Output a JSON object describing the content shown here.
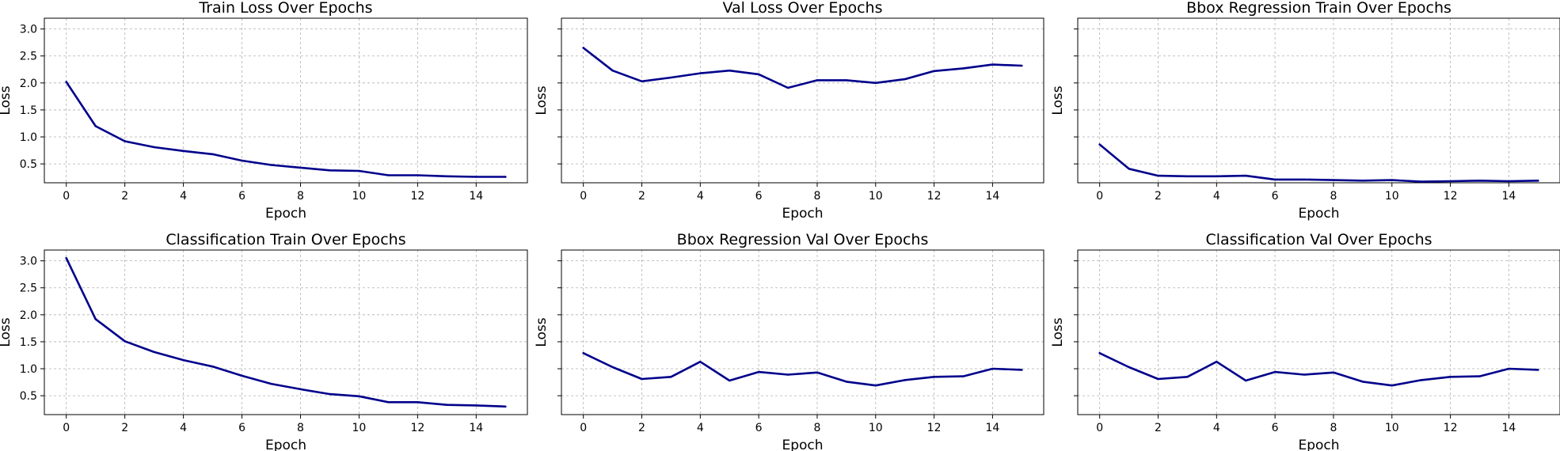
{
  "chart_data": [
    {
      "type": "line",
      "title": "Train Loss Over Epochs",
      "xlabel": "Epoch",
      "ylabel": "Loss",
      "xlim": [
        -0.75,
        15.75
      ],
      "ylim": [
        0.15,
        3.2
      ],
      "xticks": [
        "0",
        "2",
        "4",
        "6",
        "8",
        "10",
        "12",
        "14"
      ],
      "yticks": [
        "0.5",
        "1.0",
        "1.5",
        "2.0",
        "2.5",
        "3.0"
      ],
      "show_ytick_labels": true,
      "grid": true,
      "color": "#00008b",
      "x": [
        0,
        1,
        2,
        3,
        4,
        5,
        6,
        7,
        8,
        9,
        10,
        11,
        12,
        13,
        14,
        15
      ],
      "y": [
        2.02,
        1.2,
        0.92,
        0.81,
        0.74,
        0.68,
        0.56,
        0.48,
        0.43,
        0.38,
        0.37,
        0.29,
        0.29,
        0.27,
        0.26,
        0.26
      ]
    },
    {
      "type": "line",
      "title": "Val Loss Over Epochs",
      "xlabel": "Epoch",
      "ylabel": "Loss",
      "xlim": [
        -0.75,
        15.75
      ],
      "ylim": [
        0.15,
        3.2
      ],
      "xticks": [
        "0",
        "2",
        "4",
        "6",
        "8",
        "10",
        "12",
        "14"
      ],
      "yticks": [
        "0.5",
        "1.0",
        "1.5",
        "2.0",
        "2.5",
        "3.0"
      ],
      "show_ytick_labels": false,
      "grid": true,
      "color": "#00008b",
      "x": [
        0,
        1,
        2,
        3,
        4,
        5,
        6,
        7,
        8,
        9,
        10,
        11,
        12,
        13,
        14,
        15
      ],
      "y": [
        2.65,
        2.23,
        2.03,
        2.1,
        2.18,
        2.23,
        2.16,
        1.91,
        2.05,
        2.05,
        2.0,
        2.07,
        2.22,
        2.27,
        2.34,
        2.32
      ]
    },
    {
      "type": "line",
      "title": "Bbox Regression Train Over Epochs",
      "xlabel": "Epoch",
      "ylabel": "Loss",
      "xlim": [
        -0.75,
        15.75
      ],
      "ylim": [
        0.15,
        3.2
      ],
      "xticks": [
        "0",
        "2",
        "4",
        "6",
        "8",
        "10",
        "12",
        "14"
      ],
      "yticks": [
        "0.5",
        "1.0",
        "1.5",
        "2.0",
        "2.5",
        "3.0"
      ],
      "show_ytick_labels": false,
      "grid": true,
      "color": "#00008b",
      "x": [
        0,
        1,
        2,
        3,
        4,
        5,
        6,
        7,
        8,
        9,
        10,
        11,
        12,
        13,
        14,
        15
      ],
      "y": [
        0.86,
        0.41,
        0.28,
        0.27,
        0.27,
        0.28,
        0.21,
        0.21,
        0.2,
        0.19,
        0.2,
        0.17,
        0.18,
        0.19,
        0.18,
        0.19
      ]
    },
    {
      "type": "line",
      "title": "Classification Train Over Epochs",
      "xlabel": "Epoch",
      "ylabel": "Loss",
      "xlim": [
        -0.75,
        15.75
      ],
      "ylim": [
        0.15,
        3.2
      ],
      "xticks": [
        "0",
        "2",
        "4",
        "6",
        "8",
        "10",
        "12",
        "14"
      ],
      "yticks": [
        "0.5",
        "1.0",
        "1.5",
        "2.0",
        "2.5",
        "3.0"
      ],
      "show_ytick_labels": true,
      "grid": true,
      "color": "#00008b",
      "x": [
        0,
        1,
        2,
        3,
        4,
        5,
        6,
        7,
        8,
        9,
        10,
        11,
        12,
        13,
        14,
        15
      ],
      "y": [
        3.05,
        1.92,
        1.51,
        1.31,
        1.16,
        1.04,
        0.87,
        0.72,
        0.62,
        0.53,
        0.49,
        0.38,
        0.38,
        0.33,
        0.32,
        0.3
      ]
    },
    {
      "type": "line",
      "title": "Bbox Regression Val Over Epochs",
      "xlabel": "Epoch",
      "ylabel": "Loss",
      "xlim": [
        -0.75,
        15.75
      ],
      "ylim": [
        0.15,
        3.2
      ],
      "xticks": [
        "0",
        "2",
        "4",
        "6",
        "8",
        "10",
        "12",
        "14"
      ],
      "yticks": [
        "0.5",
        "1.0",
        "1.5",
        "2.0",
        "2.5",
        "3.0"
      ],
      "show_ytick_labels": false,
      "grid": true,
      "color": "#00008b",
      "x": [
        0,
        1,
        2,
        3,
        4,
        5,
        6,
        7,
        8,
        9,
        10,
        11,
        12,
        13,
        14,
        15
      ],
      "y": [
        1.29,
        1.03,
        0.81,
        0.85,
        1.13,
        0.78,
        0.94,
        0.89,
        0.93,
        0.76,
        0.69,
        0.79,
        0.85,
        0.86,
        1.0,
        0.98
      ]
    },
    {
      "type": "line",
      "title": "Classification Val Over Epochs",
      "xlabel": "Epoch",
      "ylabel": "Loss",
      "xlim": [
        -0.75,
        15.75
      ],
      "ylim": [
        0.15,
        3.2
      ],
      "xticks": [
        "0",
        "2",
        "4",
        "6",
        "8",
        "10",
        "12",
        "14"
      ],
      "yticks": [
        "0.5",
        "1.0",
        "1.5",
        "2.0",
        "2.5",
        "3.0"
      ],
      "show_ytick_labels": false,
      "grid": true,
      "color": "#00008b",
      "x": [
        0,
        1,
        2,
        3,
        4,
        5,
        6,
        7,
        8,
        9,
        10,
        11,
        12,
        13,
        14,
        15
      ],
      "y": [
        1.29,
        1.03,
        0.81,
        0.85,
        1.13,
        0.78,
        0.94,
        0.89,
        0.93,
        0.76,
        0.69,
        0.79,
        0.85,
        0.86,
        1.0,
        0.98
      ]
    }
  ]
}
